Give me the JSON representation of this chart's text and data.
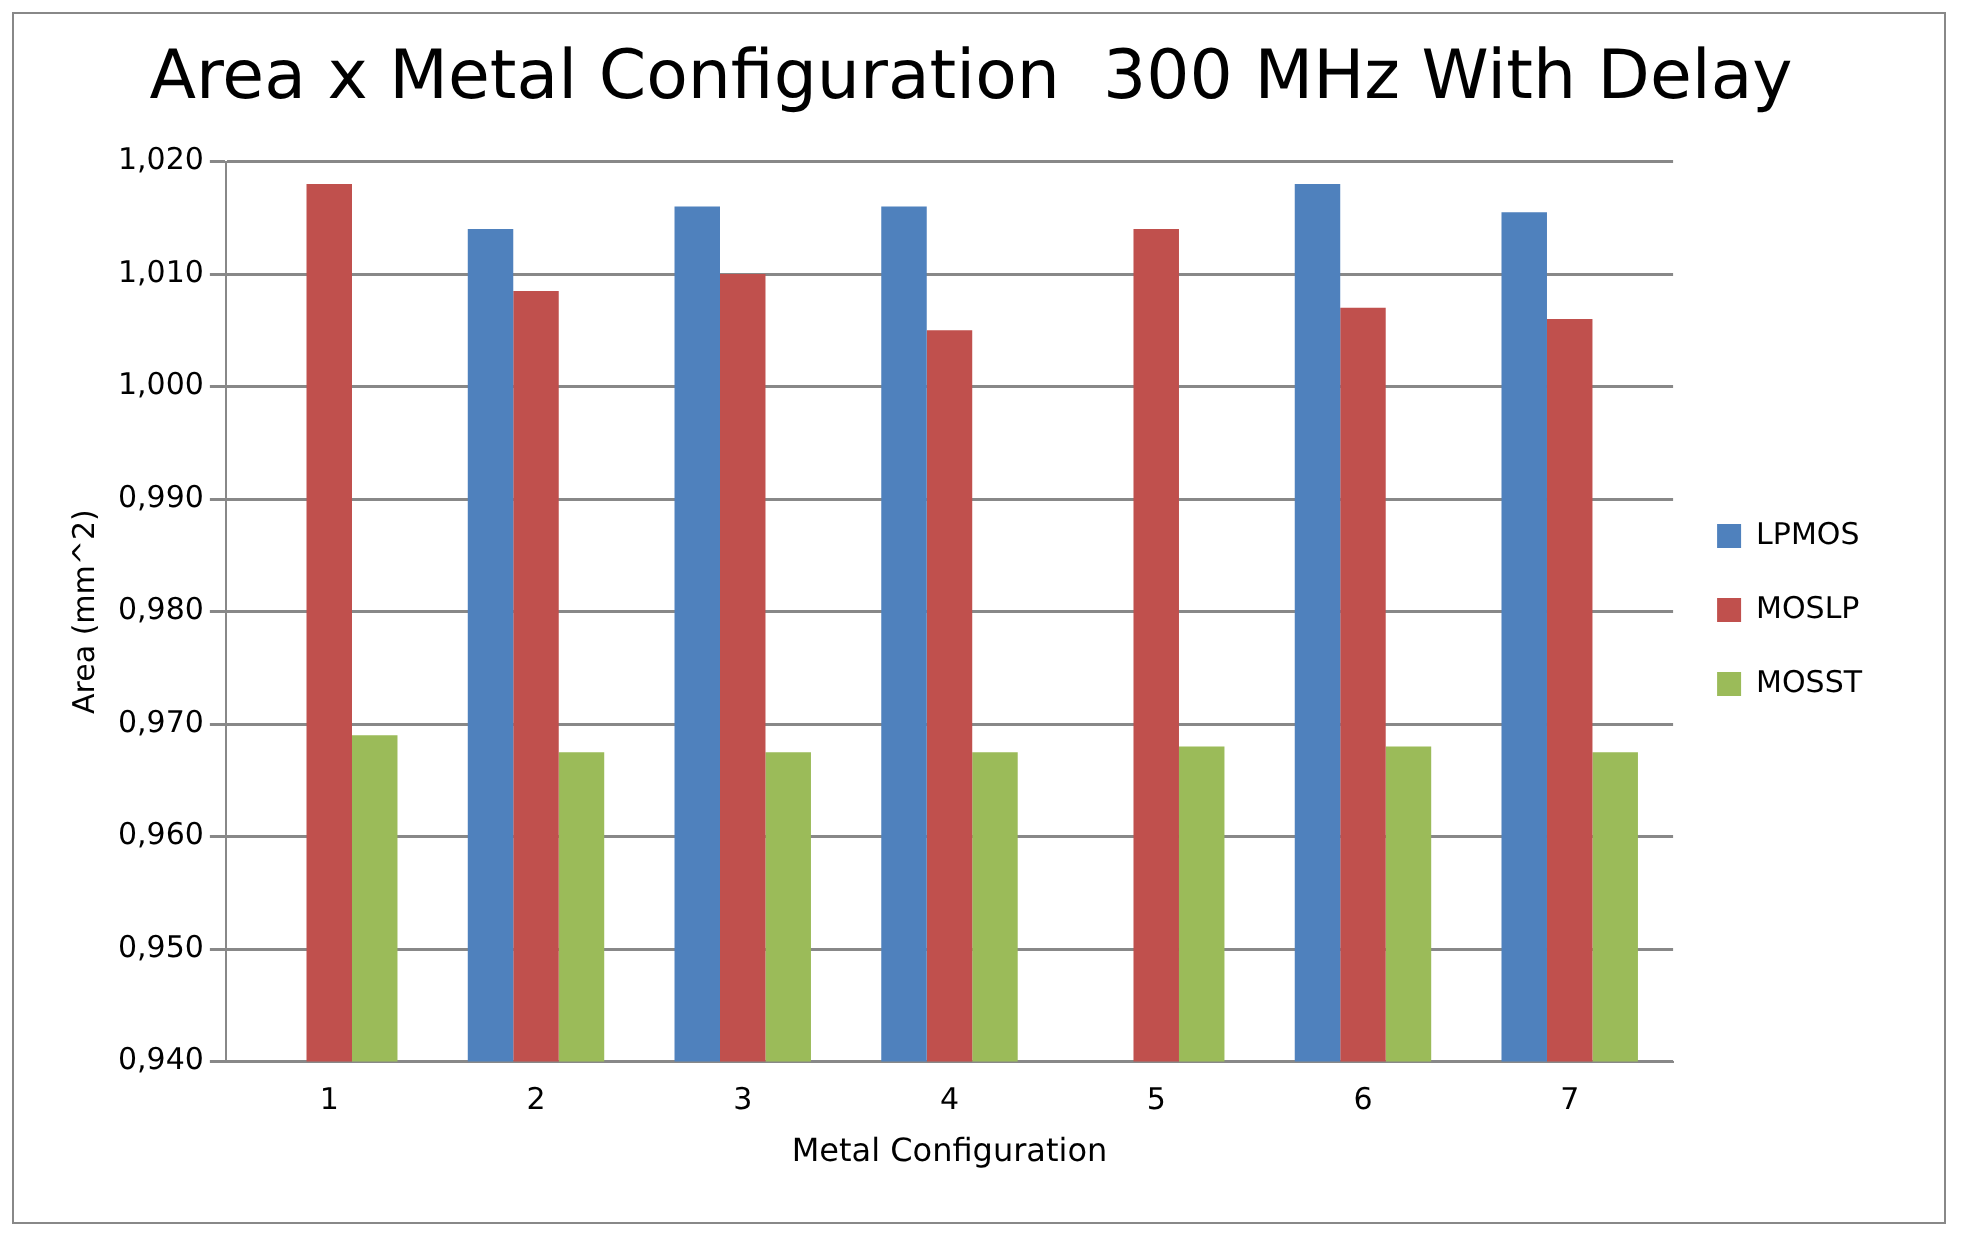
{
  "chart_data": {
    "type": "bar",
    "title": "Area x Metal Configuration  300 MHz With Delay",
    "xlabel": "Metal Configuration",
    "ylabel": "Area (mm^2)",
    "categories": [
      "1",
      "2",
      "3",
      "4",
      "5",
      "6",
      "7"
    ],
    "series": [
      {
        "name": "LPMOS",
        "color": "#4f81bd",
        "values": [
          null,
          1.014,
          1.016,
          1.016,
          null,
          1.018,
          1.0155
        ]
      },
      {
        "name": "MOSLP",
        "color": "#c0504d",
        "values": [
          1.018,
          1.0085,
          1.01,
          1.005,
          1.014,
          1.007,
          1.006
        ]
      },
      {
        "name": "MOSST",
        "color": "#9bbb59",
        "values": [
          0.969,
          0.9675,
          0.9675,
          0.9675,
          0.968,
          0.968,
          0.9675
        ]
      }
    ],
    "ylim": [
      0.94,
      1.02
    ],
    "yticks": [
      {
        "value": 0.94,
        "label": "0,940"
      },
      {
        "value": 0.95,
        "label": "0,950"
      },
      {
        "value": 0.96,
        "label": "0,960"
      },
      {
        "value": 0.97,
        "label": "0,970"
      },
      {
        "value": 0.98,
        "label": "0,980"
      },
      {
        "value": 0.99,
        "label": "0,990"
      },
      {
        "value": 1.0,
        "label": "1,000"
      },
      {
        "value": 1.01,
        "label": "1,010"
      },
      {
        "value": 1.02,
        "label": "1,020"
      }
    ],
    "grid": "y",
    "legend": "right"
  }
}
